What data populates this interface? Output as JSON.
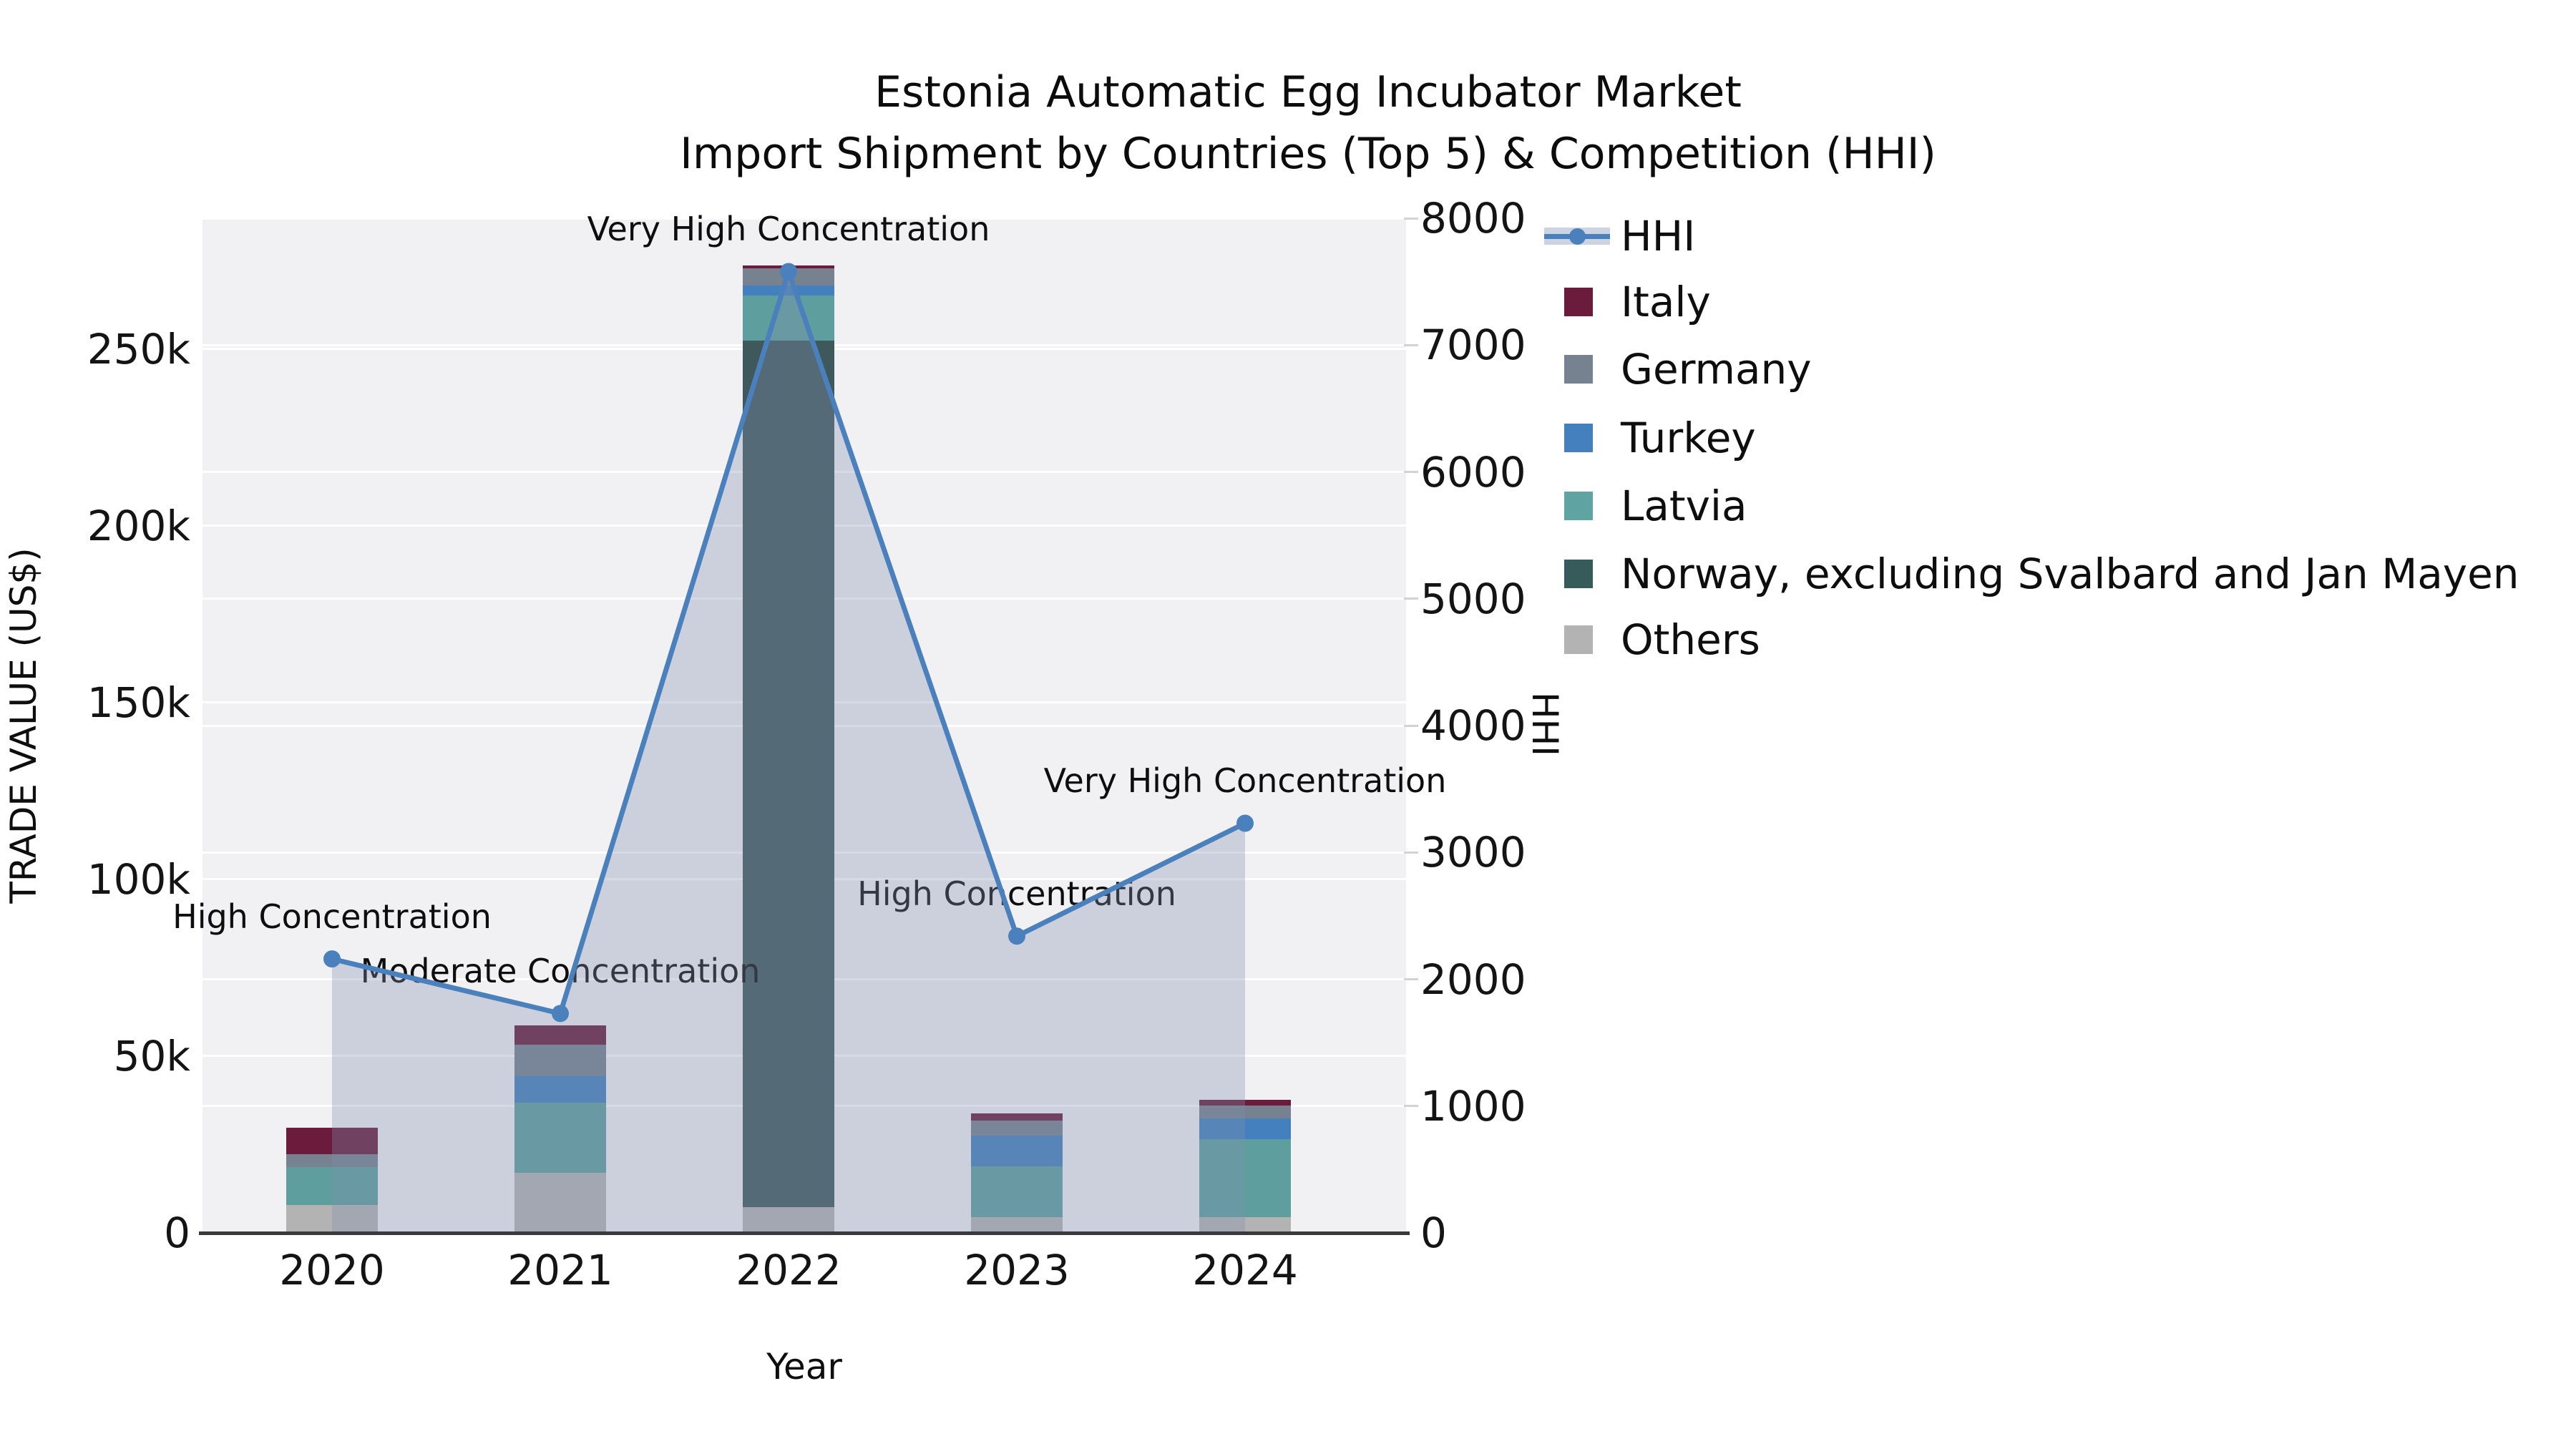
{
  "title": {
    "line1": "Estonia Automatic Egg Incubator Market",
    "line2": "Import Shipment by Countries (Top 5) & Competition (HHI)"
  },
  "axes": {
    "left_label": "TRADE VALUE (US$)",
    "right_label": "HHI",
    "x_label": "Year",
    "left_ticks": [
      "0",
      "50k",
      "100k",
      "150k",
      "200k",
      "250k"
    ],
    "right_ticks": [
      "0",
      "1000",
      "2000",
      "3000",
      "4000",
      "5000",
      "6000",
      "7000",
      "8000"
    ],
    "x_ticks": [
      "2020",
      "2021",
      "2022",
      "2023",
      "2024"
    ]
  },
  "legend": {
    "items": [
      {
        "label": "HHI",
        "type": "line",
        "color": "#4a80bc"
      },
      {
        "label": "Italy",
        "type": "patch",
        "color": "#6b1c3d"
      },
      {
        "label": "Germany",
        "type": "patch",
        "color": "#76828f"
      },
      {
        "label": "Turkey",
        "type": "patch",
        "color": "#4580be"
      },
      {
        "label": "Latvia",
        "type": "patch",
        "color": "#5fa3a3"
      },
      {
        "label": "Norway, excluding Svalbard and Jan Mayen",
        "type": "patch",
        "color": "#375a5b"
      },
      {
        "label": "Others",
        "type": "patch",
        "color": "#b3b3b3"
      }
    ]
  },
  "chart_data": {
    "type": "bar",
    "subtype": "stacked-bars-with-line",
    "title": "Estonia Automatic Egg Incubator Market",
    "subtitle": "Import Shipment by Countries (Top 5) & Competition (HHI)",
    "xlabel": "Year",
    "ylabel": "TRADE VALUE (US$)",
    "y2label": "HHI",
    "ylim_left": [
      0,
      287000
    ],
    "ylim_right": [
      0,
      8000
    ],
    "grid": true,
    "legend_position": "right",
    "categories": [
      "2020",
      "2021",
      "2022",
      "2023",
      "2024"
    ],
    "series": [
      {
        "name": "Others",
        "color": "#b3b3b3",
        "values": [
          7900,
          17000,
          7300,
          4400,
          4400
        ]
      },
      {
        "name": "Norway, excluding Svalbard and Jan Mayen",
        "color": "#3f585c",
        "values": [
          0,
          0,
          245100,
          0,
          0
        ]
      },
      {
        "name": "Latvia",
        "color": "#5f9e9e",
        "values": [
          10700,
          19800,
          12700,
          14500,
          22100
        ]
      },
      {
        "name": "Turkey",
        "color": "#4580be",
        "values": [
          0,
          7600,
          2800,
          8600,
          5900
        ]
      },
      {
        "name": "Germany",
        "color": "#76828f",
        "values": [
          3600,
          8800,
          4900,
          4300,
          3700
        ]
      },
      {
        "name": "Italy",
        "color": "#6b1c3d",
        "values": [
          7600,
          5400,
          800,
          2000,
          1600
        ]
      }
    ],
    "bar_totals": [
      29800,
      58600,
      273600,
      33800,
      37700
    ],
    "hhi_line": {
      "name": "HHI",
      "color": "#4a80bc",
      "area_fill": "rgba(126,143,172,0.33)",
      "values": [
        2160,
        1730,
        7580,
        2340,
        3230
      ]
    },
    "annotations": [
      {
        "x": "2020",
        "text": "High Concentration"
      },
      {
        "x": "2021",
        "text": "Moderate Concentration"
      },
      {
        "x": "2022",
        "text": "Very High Concentration"
      },
      {
        "x": "2023",
        "text": "High Concentration"
      },
      {
        "x": "2024",
        "text": "Very High Concentration"
      }
    ]
  }
}
